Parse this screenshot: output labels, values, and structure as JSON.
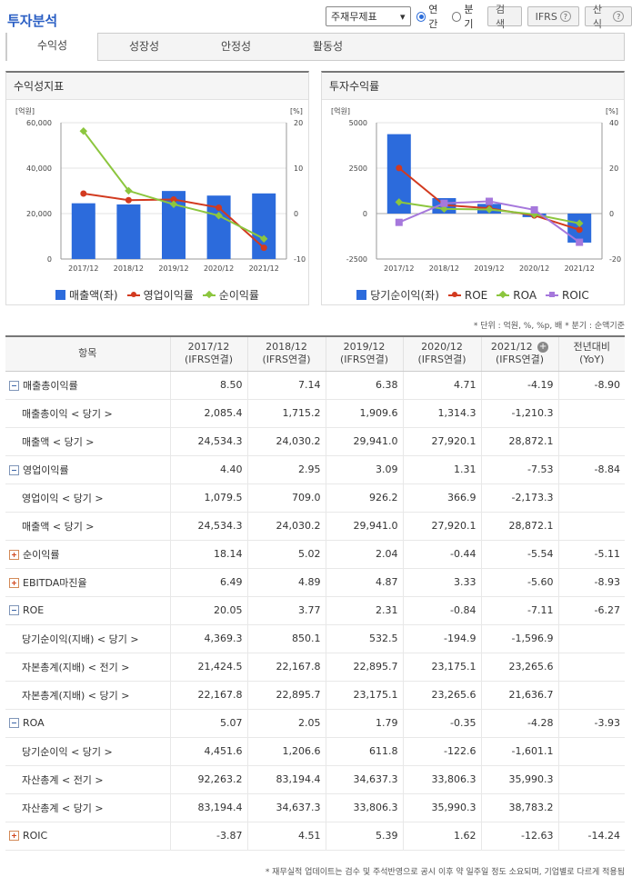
{
  "header": {
    "title": "투자분석",
    "select_value": "주재무제표",
    "radio_annual": "연간",
    "radio_quarter": "분기",
    "search_button": "검색",
    "ifrs_button": "IFRS",
    "formula_button": "산식",
    "help_glyph": "?"
  },
  "tabs": [
    "수익성",
    "성장성",
    "안정성",
    "활동성"
  ],
  "left_chart_title": "수익성지표",
  "right_chart_title": "투자수익률",
  "legend_left": [
    "매출액(좌)",
    "영업이익률",
    "순이익률"
  ],
  "legend_right": [
    "당기순이익(좌)",
    "ROE",
    "ROA",
    "ROIC"
  ],
  "colors": {
    "bar": "#2c6bdc",
    "red": "#d23a1f",
    "green": "#8cc63e",
    "purple": "#a678dc",
    "neg": "#e0161b",
    "accent": "#2b5fc4"
  },
  "chart_data": [
    {
      "type": "bar",
      "title": "수익성지표",
      "categories": [
        "2017/12",
        "2018/12",
        "2019/12",
        "2020/12",
        "2021/12"
      ],
      "left_axis_label": "[억원]",
      "right_axis_label": "[%]",
      "left_ticks": [
        "60,000",
        "40,000",
        "20,000",
        "0"
      ],
      "right_ticks": [
        "20",
        "10",
        "0",
        "-10"
      ],
      "left_ylim": [
        0,
        60000
      ],
      "right_ylim": [
        -10,
        20
      ],
      "bars": {
        "name": "매출액(좌)",
        "values": [
          24534.3,
          24030.2,
          29941.0,
          27920.1,
          28872.1
        ]
      },
      "series": [
        {
          "name": "영업이익률",
          "values": [
            4.4,
            2.95,
            3.09,
            1.31,
            -7.53
          ]
        },
        {
          "name": "순이익률",
          "values": [
            18.14,
            5.02,
            2.04,
            -0.44,
            -5.54
          ]
        }
      ]
    },
    {
      "type": "bar",
      "title": "투자수익률",
      "categories": [
        "2017/12",
        "2018/12",
        "2019/12",
        "2020/12",
        "2021/12"
      ],
      "left_axis_label": "[억원]",
      "right_axis_label": "[%]",
      "left_ticks": [
        "5000",
        "2500",
        "0",
        "-2500"
      ],
      "right_ticks": [
        "40",
        "20",
        "0",
        "-20"
      ],
      "left_ylim": [
        -2500,
        5000
      ],
      "right_ylim": [
        -20,
        40
      ],
      "bars": {
        "name": "당기순이익(좌)",
        "values": [
          4369.3,
          850.1,
          532.5,
          -194.9,
          -1596.9
        ]
      },
      "series": [
        {
          "name": "ROE",
          "values": [
            20.05,
            3.77,
            2.31,
            -0.84,
            -7.11
          ]
        },
        {
          "name": "ROA",
          "values": [
            5.07,
            2.05,
            1.79,
            -0.35,
            -4.28
          ]
        },
        {
          "name": "ROIC",
          "values": [
            -3.87,
            4.51,
            5.39,
            1.62,
            -12.63
          ]
        }
      ]
    }
  ],
  "unit_note": "* 단위 : 억원, %, %p, 배   * 분기 : 순액기준",
  "table": {
    "header_item": "항목",
    "columns": [
      {
        "year": "2017/12",
        "basis": "(IFRS연결)"
      },
      {
        "year": "2018/12",
        "basis": "(IFRS연결)"
      },
      {
        "year": "2019/12",
        "basis": "(IFRS연결)"
      },
      {
        "year": "2020/12",
        "basis": "(IFRS연결)"
      },
      {
        "year": "2021/12",
        "basis": "(IFRS연결)"
      }
    ],
    "yoy_header": {
      "line1": "전년대비",
      "line2": "(YoY)"
    },
    "plus_glyph": "+",
    "rows": [
      {
        "label": "매출총이익률",
        "vals": [
          "8.50",
          "7.14",
          "6.38",
          "4.71",
          "-4.19"
        ],
        "yoy": "-8.90"
      },
      {
        "label": "매출총이익 < 당기 >",
        "vals": [
          "2,085.4",
          "1,715.2",
          "1,909.6",
          "1,314.3",
          "-1,210.3"
        ],
        "yoy": ""
      },
      {
        "label": "매출액 < 당기 >",
        "vals": [
          "24,534.3",
          "24,030.2",
          "29,941.0",
          "27,920.1",
          "28,872.1"
        ],
        "yoy": ""
      },
      {
        "label": "영업이익률",
        "vals": [
          "4.40",
          "2.95",
          "3.09",
          "1.31",
          "-7.53"
        ],
        "yoy": "-8.84"
      },
      {
        "label": "영업이익 < 당기 >",
        "vals": [
          "1,079.5",
          "709.0",
          "926.2",
          "366.9",
          "-2,173.3"
        ],
        "yoy": ""
      },
      {
        "label": "매출액 < 당기 >",
        "vals": [
          "24,534.3",
          "24,030.2",
          "29,941.0",
          "27,920.1",
          "28,872.1"
        ],
        "yoy": ""
      },
      {
        "label": "순이익률",
        "vals": [
          "18.14",
          "5.02",
          "2.04",
          "-0.44",
          "-5.54"
        ],
        "yoy": "-5.11"
      },
      {
        "label": "EBITDA마진율",
        "vals": [
          "6.49",
          "4.89",
          "4.87",
          "3.33",
          "-5.60"
        ],
        "yoy": "-8.93"
      },
      {
        "label": "ROE",
        "vals": [
          "20.05",
          "3.77",
          "2.31",
          "-0.84",
          "-7.11"
        ],
        "yoy": "-6.27"
      },
      {
        "label": "당기순이익(지배) < 당기 >",
        "vals": [
          "4,369.3",
          "850.1",
          "532.5",
          "-194.9",
          "-1,596.9"
        ],
        "yoy": ""
      },
      {
        "label": "자본총계(지배) < 전기 >",
        "vals": [
          "21,424.5",
          "22,167.8",
          "22,895.7",
          "23,175.1",
          "23,265.6"
        ],
        "yoy": ""
      },
      {
        "label": "자본총계(지배) < 당기 >",
        "vals": [
          "22,167.8",
          "22,895.7",
          "23,175.1",
          "23,265.6",
          "21,636.7"
        ],
        "yoy": ""
      },
      {
        "label": "ROA",
        "vals": [
          "5.07",
          "2.05",
          "1.79",
          "-0.35",
          "-4.28"
        ],
        "yoy": "-3.93"
      },
      {
        "label": "당기순이익 < 당기 >",
        "vals": [
          "4,451.6",
          "1,206.6",
          "611.8",
          "-122.6",
          "-1,601.1"
        ],
        "yoy": ""
      },
      {
        "label": "자산총계 < 전기 >",
        "vals": [
          "92,263.2",
          "83,194.4",
          "34,637.3",
          "33,806.3",
          "35,990.3"
        ],
        "yoy": ""
      },
      {
        "label": "자산총계 < 당기 >",
        "vals": [
          "83,194.4",
          "34,637.3",
          "33,806.3",
          "35,990.3",
          "38,783.2"
        ],
        "yoy": ""
      },
      {
        "label": "ROIC",
        "vals": [
          "-3.87",
          "4.51",
          "5.39",
          "1.62",
          "-12.63"
        ],
        "yoy": "-14.24"
      }
    ]
  },
  "footer_note": "* 재무실적 업데이트는 검수 및 주석반영으로 공시 이후 약 일주일 정도 소요되며, 기업별로 다르게 적용됨"
}
